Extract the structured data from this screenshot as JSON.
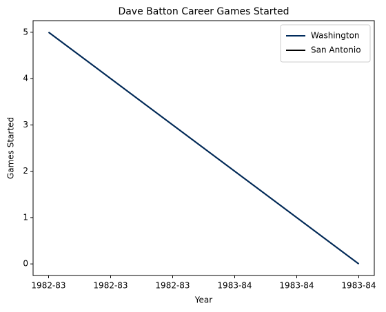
{
  "chart_data": {
    "type": "line",
    "title": "Dave Batton Career Games Started",
    "x_label": "Year",
    "y_label": "Games Started",
    "x": [
      0,
      1
    ],
    "series": [
      {
        "name": "Washington",
        "color": "#002b5c",
        "values": [
          5,
          0
        ]
      },
      {
        "name": "San Antonio",
        "color": "#000000",
        "values": [
          5,
          0
        ]
      }
    ],
    "xlim": [
      -0.05,
      1.05
    ],
    "xticks": [
      {
        "value": 0,
        "label": "1982-83"
      },
      {
        "value": 0.2,
        "label": "1982-83"
      },
      {
        "value": 0.4,
        "label": "1982-83"
      },
      {
        "value": 0.6,
        "label": "1983-84"
      },
      {
        "value": 0.8,
        "label": "1983-84"
      },
      {
        "value": 1,
        "label": "1983-84"
      }
    ],
    "ylim": [
      -0.25,
      5.25
    ],
    "yticks": [
      0,
      1,
      2,
      3,
      4,
      5
    ],
    "grid": false,
    "legend": "upper right"
  }
}
